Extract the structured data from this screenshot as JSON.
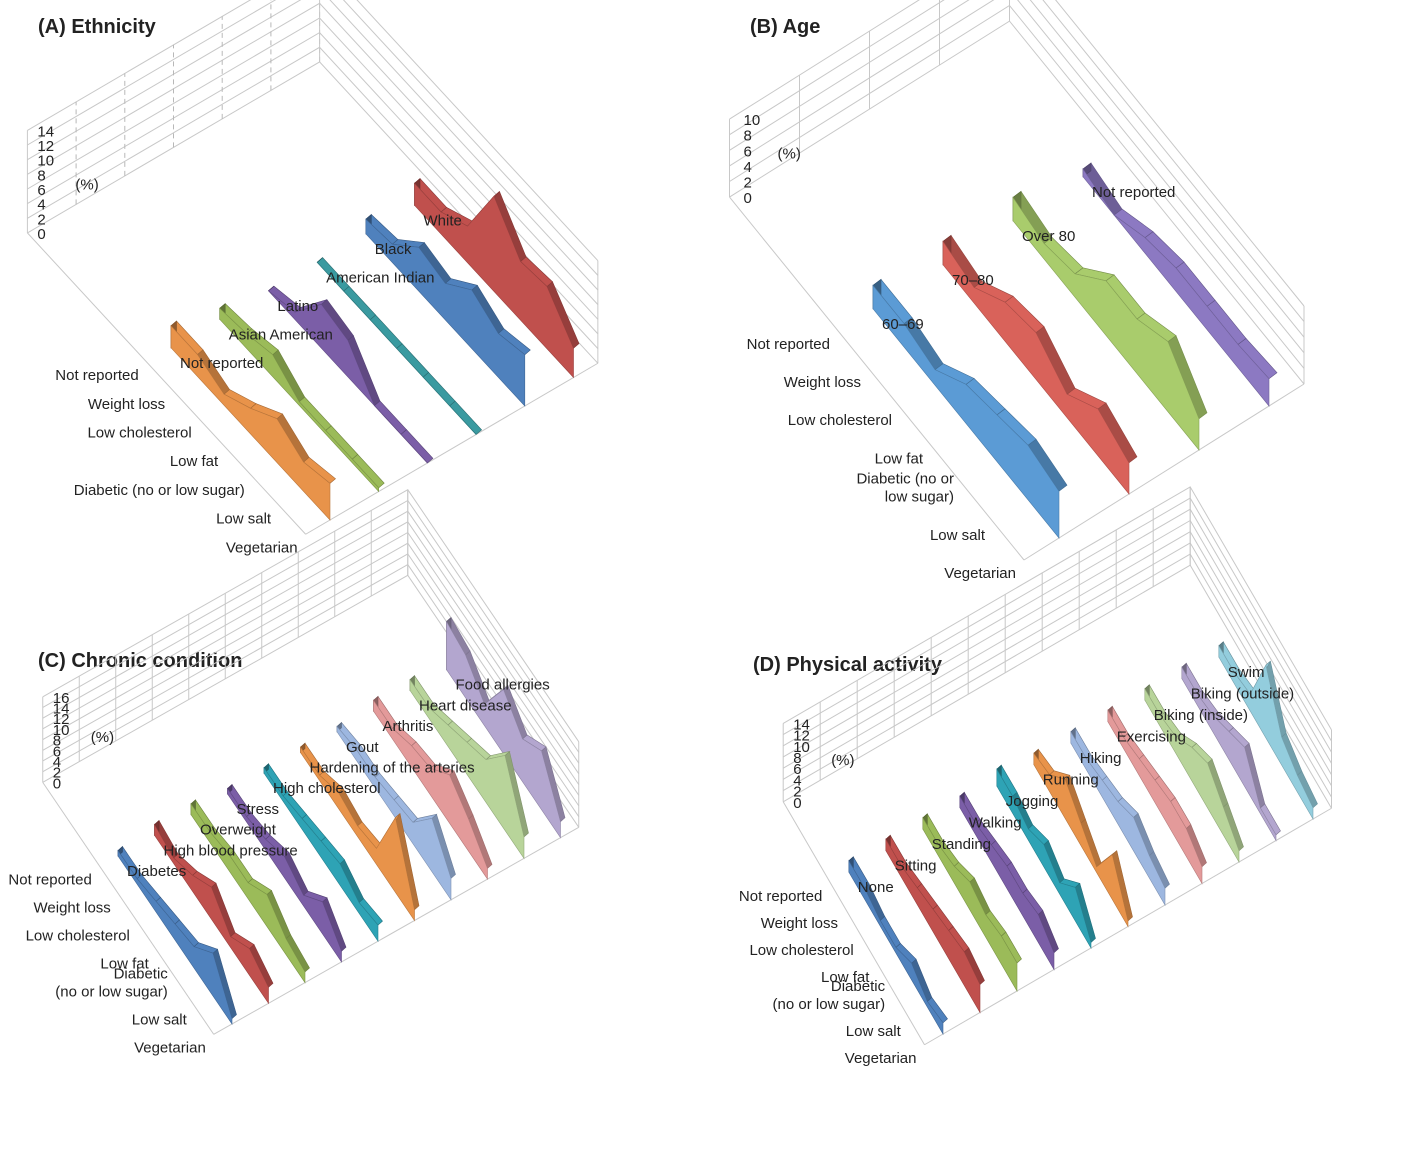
{
  "chart_data": [
    {
      "type": "area",
      "title": "(A) Ethnicity",
      "ylabel": "(%)",
      "ylim": [
        0,
        14
      ],
      "yticks": [
        0,
        2,
        4,
        6,
        8,
        10,
        12,
        14
      ],
      "grid": true,
      "categories": [
        "Vegetarian",
        "Low salt",
        "Diabetic (no or low sugar)",
        "Low fat",
        "Low cholesterol",
        "Weight loss",
        "Not reported"
      ],
      "category_label_lines": [
        [
          "Vegetarian"
        ],
        [
          "Low salt"
        ],
        [
          "Diabetic (no or low sugar)"
        ],
        [
          "Low fat"
        ],
        [
          "Low cholesterol"
        ],
        [
          "Weight loss"
        ],
        [
          "Not reported"
        ]
      ],
      "series": [
        {
          "name": "Not reported",
          "color": "#e8934a",
          "values": [
            5,
            4,
            6,
            3.5,
            1.5,
            3,
            3
          ]
        },
        {
          "name": "Asian American",
          "color": "#9bbb59",
          "values": [
            0.5,
            0.5,
            0.5,
            0.5,
            3,
            2,
            1.5
          ]
        },
        {
          "name": "Latino",
          "color": "#7b5ea7",
          "values": [
            0,
            0,
            0,
            5,
            6,
            1,
            0
          ]
        },
        {
          "name": "American Indian",
          "color": "#3a9aa0",
          "values": [
            0,
            0,
            0,
            0,
            0,
            0,
            0
          ]
        },
        {
          "name": "Black",
          "color": "#4f81bd",
          "values": [
            7,
            6,
            8,
            5,
            6,
            2.5,
            2
          ]
        },
        {
          "name": "White",
          "color": "#c0504d",
          "values": [
            4,
            8.5,
            8,
            13,
            5,
            3,
            3
          ]
        }
      ]
    },
    {
      "type": "area",
      "title": "(B) Age",
      "ylabel": "(%)",
      "ylim": [
        0,
        10
      ],
      "yticks": [
        0,
        2,
        4,
        6,
        8,
        10
      ],
      "grid": true,
      "categories": [
        "Vegetarian",
        "Low salt",
        "Diabetic (no or low sugar)",
        "Low fat",
        "Low cholesterol",
        "Weight loss",
        "Not reported"
      ],
      "category_label_lines": [
        [
          "Vegetarian"
        ],
        [
          "Low salt"
        ],
        [
          "Diabetic (no or",
          "low sugar)"
        ],
        [
          "Low fat"
        ],
        [
          "Low cholesterol"
        ],
        [
          "Weight loss"
        ],
        [
          "Not reported"
        ]
      ],
      "series": [
        {
          "name": "60–69",
          "color": "#5b9bd5",
          "values": [
            6,
            7,
            6,
            5,
            2,
            3,
            3
          ]
        },
        {
          "name": "70–80",
          "color": "#d9625a",
          "values": [
            4,
            6,
            3,
            6,
            5,
            2,
            3
          ]
        },
        {
          "name": "Over 80",
          "color": "#a9cc6c",
          "values": [
            4,
            9,
            7,
            7,
            3,
            2,
            3
          ]
        },
        {
          "name": "Not reported",
          "color": "#8c79c2",
          "values": [
            3.5,
            3,
            3,
            3,
            2,
            0,
            1
          ]
        }
      ]
    },
    {
      "type": "area",
      "title": "(C) Chronic condition",
      "ylabel": "(%)",
      "ylim": [
        0,
        16
      ],
      "yticks": [
        0,
        2,
        4,
        6,
        8,
        10,
        12,
        14,
        16
      ],
      "grid": true,
      "categories": [
        "Vegetarian",
        "Low salt",
        "Diabetic (no or low sugar)",
        "Low fat",
        "Low cholesterol",
        "Weight loss",
        "Not reported"
      ],
      "category_label_lines": [
        [
          "Vegetarian"
        ],
        [
          "Low salt"
        ],
        [
          "Diabetic",
          "(no or low sugar)"
        ],
        [
          "Low fat"
        ],
        [
          "Low cholesterol"
        ],
        [
          "Weight loss"
        ],
        [
          "Not reported"
        ]
      ],
      "series": [
        {
          "name": "Diabetes",
          "color": "#4f81bd",
          "values": [
            1,
            8,
            4,
            3,
            2,
            1,
            1
          ]
        },
        {
          "name": "High blood pressure",
          "color": "#c0504d",
          "values": [
            3,
            5,
            2,
            6,
            3,
            1,
            2
          ]
        },
        {
          "name": "Overweight",
          "color": "#9bbb59",
          "values": [
            2,
            3,
            6,
            3,
            3,
            2,
            2
          ]
        },
        {
          "name": "Stress",
          "color": "#7b5ea7",
          "values": [
            2,
            6,
            2,
            4,
            2,
            1,
            1
          ]
        },
        {
          "name": "High cholesterol",
          "color": "#2ea3b5",
          "values": [
            3,
            2,
            4,
            3,
            2,
            1,
            1
          ]
        },
        {
          "name": "Hardening of the arteries",
          "color": "#e8934a",
          "values": [
            2,
            14,
            3,
            2,
            3,
            1,
            1
          ]
        },
        {
          "name": "Gout",
          "color": "#9db7e0",
          "values": [
            4,
            10,
            4,
            3,
            2,
            2,
            1
          ]
        },
        {
          "name": "Arthritis",
          "color": "#e39a9a",
          "values": [
            2,
            6,
            9,
            5,
            4,
            2,
            2
          ]
        },
        {
          "name": "Heart disease",
          "color": "#b8d49a",
          "values": [
            4,
            14,
            8,
            6,
            4,
            2,
            2
          ]
        },
        {
          "name": "Food allergies",
          "color": "#b3a6cf",
          "values": [
            3,
            11,
            8,
            12,
            4,
            8,
            9
          ]
        }
      ]
    },
    {
      "type": "area",
      "title": "(D) Physical activity",
      "ylabel": "(%)",
      "ylim": [
        0,
        14
      ],
      "yticks": [
        0,
        2,
        4,
        6,
        8,
        10,
        12,
        14
      ],
      "grid": true,
      "categories": [
        "Vegetarian",
        "Low salt",
        "Diabetic (no or low sugar)",
        "Low fat",
        "Low cholesterol",
        "Weight loss",
        "Not reported"
      ],
      "category_label_lines": [
        [
          "Vegetarian"
        ],
        [
          "Low salt"
        ],
        [
          "Diabetic",
          "(no or low sugar)"
        ],
        [
          "Low fat"
        ],
        [
          "Low cholesterol"
        ],
        [
          "Weight loss"
        ],
        [
          "Not reported"
        ]
      ],
      "series": [
        {
          "name": "None",
          "color": "#4f81bd",
          "values": [
            2,
            1,
            3,
            1,
            1,
            2,
            2
          ]
        },
        {
          "name": "Sitting",
          "color": "#c0504d",
          "values": [
            5,
            6,
            5,
            4,
            3,
            2,
            2
          ]
        },
        {
          "name": "Standing",
          "color": "#9bbb59",
          "values": [
            5,
            5,
            4,
            5,
            3,
            2,
            2
          ]
        },
        {
          "name": "Walking",
          "color": "#7b5ea7",
          "values": [
            3,
            5,
            4,
            4,
            3,
            2,
            2
          ]
        },
        {
          "name": "Jogging",
          "color": "#2ea3b5",
          "values": [
            1,
            6,
            2,
            4,
            2,
            3,
            3
          ]
        },
        {
          "name": "Running",
          "color": "#e8934a",
          "values": [
            1,
            8,
            1,
            4,
            7,
            3,
            2
          ]
        },
        {
          "name": "Hiking",
          "color": "#9db7e0",
          "values": [
            3,
            4,
            6,
            4,
            3,
            2,
            2
          ]
        },
        {
          "name": "Exercising",
          "color": "#e39a9a",
          "values": [
            3,
            5,
            5,
            4,
            3,
            2,
            2
          ]
        },
        {
          "name": "Biking (inside)",
          "color": "#b8d49a",
          "values": [
            2,
            5,
            8,
            6,
            3,
            2,
            2
          ]
        },
        {
          "name": "Biking (outside)",
          "color": "#b3a6cf",
          "values": [
            1,
            1,
            7,
            5,
            3,
            2,
            2
          ]
        },
        {
          "name": "Swim",
          "color": "#93cddd",
          "values": [
            2,
            3,
            5,
            13,
            3,
            2,
            2
          ]
        }
      ]
    }
  ]
}
